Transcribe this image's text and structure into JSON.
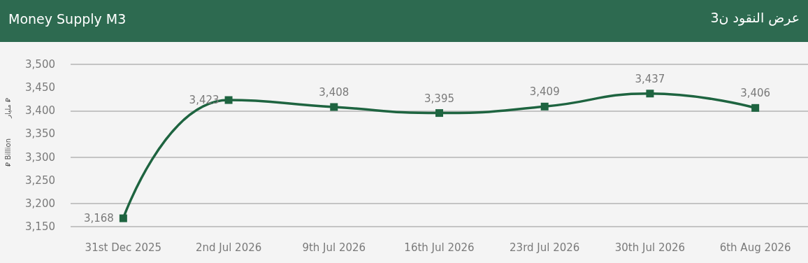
{
  "chart_data": {
    "type": "line",
    "title": "Money Supply M3",
    "subtitle": "عرض النقود ن3",
    "ylabel": "⃁ Billion",
    "annotations": [
      "مليار ⃁"
    ],
    "categories": [
      "31st Dec 2025",
      "2nd Jul 2026",
      "9th Jul 2026",
      "16th Jul 2026",
      "23rd Jul 2026",
      "30th Jul 2026",
      "6th Aug 2026"
    ],
    "series": [
      {
        "color": "#1e6440",
        "values": [
          3168,
          3423,
          3408,
          3395,
          3409,
          3437,
          3406
        ],
        "value_labels": [
          "3,168",
          "3,423",
          "3,408",
          "3,395",
          "3,409",
          "3,437",
          "3,406"
        ]
      }
    ],
    "ylim": [
      3150,
      3500
    ],
    "yticks": [
      {
        "value": 3150,
        "label": "3,150"
      },
      {
        "value": 3200,
        "label": "3,200"
      },
      {
        "value": 3250,
        "label": "3,250"
      },
      {
        "value": 3300,
        "label": "3,300"
      },
      {
        "value": 3350,
        "label": "3,350"
      },
      {
        "value": 3400,
        "label": "3,400"
      },
      {
        "value": 3450,
        "label": "3,450"
      },
      {
        "value": 3500,
        "label": "3,500"
      }
    ],
    "grid": "y",
    "marker": "square",
    "line_style": "solid"
  }
}
